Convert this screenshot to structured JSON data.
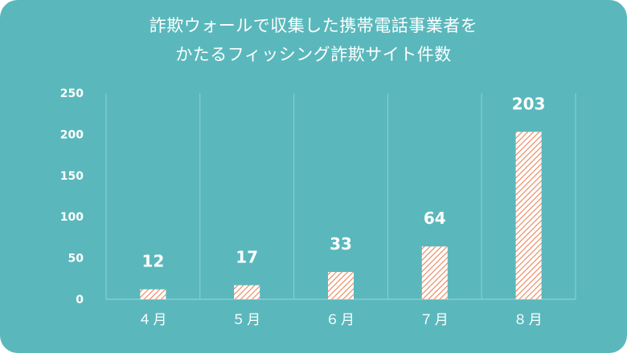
{
  "chart_data": {
    "type": "bar",
    "title_lines": [
      "詐欺ウォールで収集した携帯電話事業者を",
      "かたるフィッシング詐欺サイト件数"
    ],
    "categories": [
      "４月",
      "５月",
      "６月",
      "７月",
      "８月"
    ],
    "values": [
      12,
      17,
      33,
      64,
      203
    ],
    "data_labels": [
      "12",
      "17",
      "33",
      "64",
      "203"
    ],
    "y_ticks": [
      0,
      50,
      100,
      150,
      200,
      250
    ],
    "ylim": [
      0,
      250
    ],
    "grid": "vertical",
    "legend": "none",
    "colors": {
      "background": "#5ab8bc",
      "bar_fill": "#ffffff",
      "bar_hatch": "#e8845a",
      "text": "#ffffff",
      "grid": "#8ed0d3"
    }
  }
}
